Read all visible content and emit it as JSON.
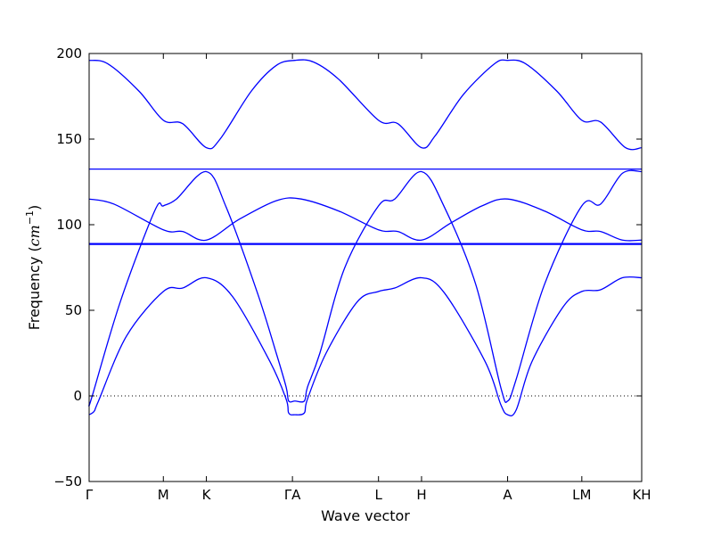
{
  "chart_data": {
    "type": "line",
    "ylabel_text": "Frequency (",
    "ylabel_math": "cm",
    "ylabel_exp": "−1",
    "ylabel_close": ")",
    "xlabel": "Wave vector",
    "ylim": [
      -50,
      200
    ],
    "yticks": [
      {
        "value": -50,
        "label": "−50"
      },
      {
        "value": 0,
        "label": "0"
      },
      {
        "value": 50,
        "label": "50"
      },
      {
        "value": 100,
        "label": "100"
      },
      {
        "value": 150,
        "label": "150"
      },
      {
        "value": 200,
        "label": "200"
      }
    ],
    "xlim": [
      0,
      8.86
    ],
    "kpoints": [
      {
        "x": 0.0,
        "label": "Γ"
      },
      {
        "x": 1.19,
        "label": "M"
      },
      {
        "x": 1.88,
        "label": "K"
      },
      {
        "x": 3.26,
        "label": "ΓA"
      },
      {
        "x": 4.64,
        "label": "L"
      },
      {
        "x": 5.33,
        "label": "H"
      },
      {
        "x": 6.71,
        "label": "A"
      },
      {
        "x": 7.9,
        "label": "LM"
      },
      {
        "x": 8.86,
        "label": "KH"
      }
    ],
    "zero_line": 0,
    "line_color": "#0000ff",
    "series": [
      {
        "points": [
          [
            0,
            -11
          ],
          [
            0.08,
            -9
          ],
          [
            0.15,
            -3
          ],
          [
            0.6,
            35
          ],
          [
            1.19,
            61
          ],
          [
            1.5,
            63
          ],
          [
            1.88,
            69
          ],
          [
            2.3,
            58
          ],
          [
            2.9,
            20
          ],
          [
            3.16,
            -2
          ],
          [
            3.2,
            -10
          ],
          [
            3.3,
            -11
          ],
          [
            3.45,
            -10
          ],
          [
            3.5,
            -2
          ],
          [
            3.8,
            25
          ],
          [
            4.3,
            55
          ],
          [
            4.64,
            61
          ],
          [
            4.9,
            63
          ],
          [
            5.33,
            69
          ],
          [
            5.7,
            60
          ],
          [
            6.35,
            20
          ],
          [
            6.6,
            -5
          ],
          [
            6.71,
            -11
          ],
          [
            6.85,
            -8
          ],
          [
            7.1,
            20
          ],
          [
            7.6,
            52
          ],
          [
            7.9,
            61
          ],
          [
            8.2,
            62
          ],
          [
            8.55,
            69
          ],
          [
            8.86,
            69
          ]
        ]
      },
      {
        "points": [
          [
            0,
            -5
          ],
          [
            0.05,
            0
          ],
          [
            0.5,
            55
          ],
          [
            1.05,
            108
          ],
          [
            1.19,
            111
          ],
          [
            1.4,
            115
          ],
          [
            1.88,
            131
          ],
          [
            2.2,
            110
          ],
          [
            2.7,
            60
          ],
          [
            3.0,
            25
          ],
          [
            3.16,
            5
          ],
          [
            3.2,
            -3
          ],
          [
            3.3,
            -3
          ],
          [
            3.45,
            -3
          ],
          [
            3.5,
            5
          ],
          [
            3.7,
            25
          ],
          [
            4.1,
            75
          ],
          [
            4.64,
            111
          ],
          [
            4.9,
            115
          ],
          [
            5.33,
            131
          ],
          [
            5.7,
            110
          ],
          [
            6.2,
            65
          ],
          [
            6.6,
            5
          ],
          [
            6.71,
            -3
          ],
          [
            6.85,
            10
          ],
          [
            7.3,
            65
          ],
          [
            7.9,
            111
          ],
          [
            8.2,
            112
          ],
          [
            8.55,
            130
          ],
          [
            8.86,
            131
          ]
        ]
      },
      {
        "points": [
          [
            0,
            115
          ],
          [
            0.4,
            112
          ],
          [
            1.19,
            97
          ],
          [
            1.5,
            96
          ],
          [
            1.88,
            91
          ],
          [
            2.4,
            103
          ],
          [
            3.0,
            114
          ],
          [
            3.4,
            115
          ],
          [
            4.0,
            108
          ],
          [
            4.64,
            97
          ],
          [
            4.95,
            96
          ],
          [
            5.33,
            91
          ],
          [
            5.8,
            101
          ],
          [
            6.3,
            111
          ],
          [
            6.71,
            115
          ],
          [
            7.3,
            108
          ],
          [
            7.9,
            97
          ],
          [
            8.2,
            96
          ],
          [
            8.55,
            91
          ],
          [
            8.86,
            91
          ]
        ]
      },
      {
        "points": [
          [
            0,
            196
          ],
          [
            0.3,
            194
          ],
          [
            0.8,
            178
          ],
          [
            1.19,
            161
          ],
          [
            1.5,
            159
          ],
          [
            1.88,
            145
          ],
          [
            2.1,
            150
          ],
          [
            2.6,
            178
          ],
          [
            3.0,
            193
          ],
          [
            3.3,
            196
          ],
          [
            3.6,
            195
          ],
          [
            4.0,
            185
          ],
          [
            4.64,
            161
          ],
          [
            4.95,
            159
          ],
          [
            5.33,
            145
          ],
          [
            5.55,
            152
          ],
          [
            6.0,
            176
          ],
          [
            6.5,
            194
          ],
          [
            6.71,
            196
          ],
          [
            7.0,
            194
          ],
          [
            7.5,
            178
          ],
          [
            7.9,
            161
          ],
          [
            8.2,
            160
          ],
          [
            8.6,
            145
          ],
          [
            8.86,
            145
          ]
        ]
      },
      {
        "points": [
          [
            0,
            132.5
          ],
          [
            8.86,
            132.5
          ]
        ]
      },
      {
        "points": [
          [
            0,
            89
          ],
          [
            8.86,
            89
          ]
        ]
      },
      {
        "points": [
          [
            0,
            88.5
          ],
          [
            8.86,
            88.5
          ]
        ]
      }
    ]
  }
}
